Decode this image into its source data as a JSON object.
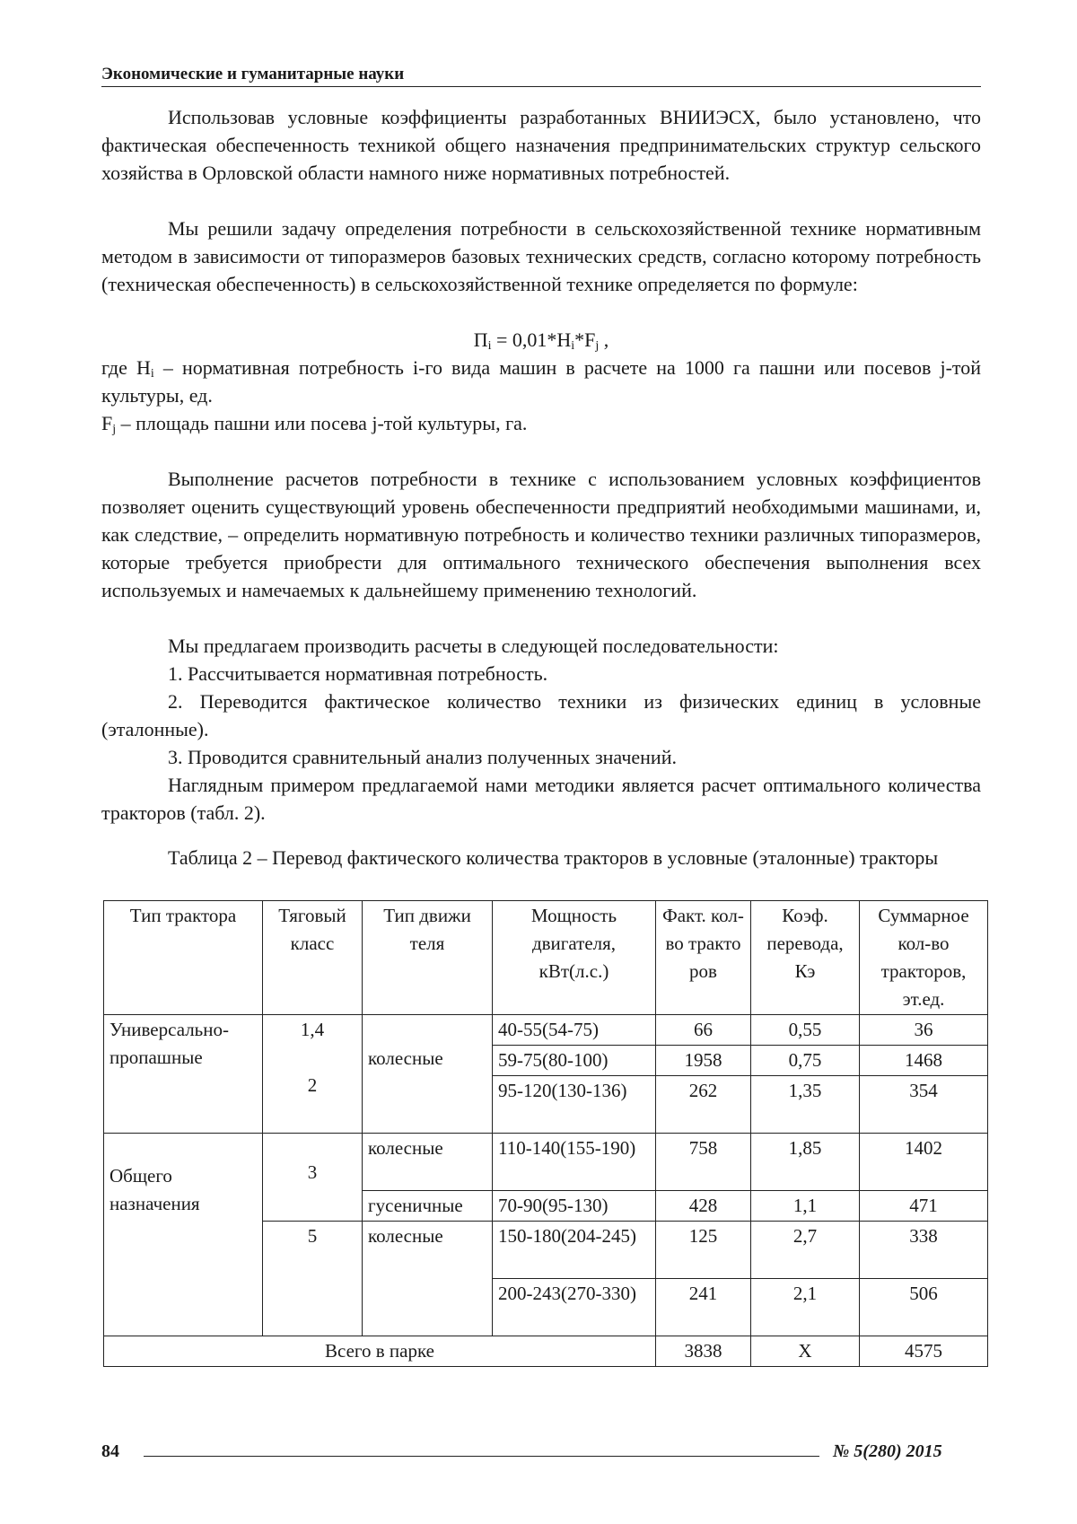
{
  "header": {
    "journal_section": "Экономические и гуманитарные науки"
  },
  "paragraphs": [
    "Использовав условные коэффициенты разработанных ВНИИЭСХ, было установлено, что фактическая обеспеченность техникой общего назначения предпринимательских структур сельского хозяйства в Орловской области намного ниже нормативных потребностей.",
    "Мы решили задачу определения потребности в сельскохозяйственной технике нормативным методом в зависимости от типоразмеров базовых технических средств, согласно которому потребность (техническая обеспеченность) в сельскохозяйственной технике определяется по формуле:"
  ],
  "formula": {
    "lhs": "П",
    "lhs_sub": "i",
    "eq": " = 0,01*Н",
    "h_sub": "i",
    "mid": "*F",
    "f_sub": "j",
    "end": " ,"
  },
  "where": {
    "h_sym": "где Н",
    "h_sub": "i",
    "h_text": " – нормативная потребность i-го вида машин в расчете на 1000 га пашни или посевов j-той культуры, ед.",
    "f_sym": "F",
    "f_sub": "j",
    "f_text": " – площадь пашни или посева j-той культуры, га."
  },
  "paragraphs2": [
    "Выполнение расчетов потребности в технике с использованием условных коэффициентов позволяет оценить существующий уровень обеспеченности предприятий необходимыми машинами, и, как следствие, – определить нормативную потребность и количество техники различных типоразмеров, которые требуется приобрести для оптимального технического обеспечения выполнения всех используемых и намечаемых к дальнейшему применению технологий.",
    "Мы предлагаем производить расчеты в следующей последовательности:",
    "1. Рассчитывается нормативная потребность.",
    "2. Переводится фактическое количество техники из физических единиц в условные (эталонные).",
    "3. Проводится сравнительный анализ полученных значений.",
    "Наглядным примером предлагаемой нами методики является  расчет оптимального количества тракторов (табл. 2)."
  ],
  "table": {
    "caption": "Таблица 2 – Перевод фактического количества тракторов в условные (эталонные) тракторы",
    "headers": [
      "Тип трактора",
      "Тяговый класс",
      "Тип движи теля",
      "Мощность двигателя, кВт(л.с.)",
      "Факт. кол-во тракто ров",
      "Коэф. перевода, Кэ",
      "Суммарное кол-во тракторов, эт.ед."
    ],
    "groups": {
      "g1": "Универсально-пропашные",
      "g2": "Общего назначения"
    },
    "classes": {
      "c14": "1,4",
      "c2": "2",
      "c3": "3",
      "c5": "5"
    },
    "engines": {
      "wheel": "колесные",
      "track": "гусеничные"
    },
    "rows": [
      {
        "power": "40-55(54-75)",
        "fact": "66",
        "coef": "0,55",
        "total": "36"
      },
      {
        "power": "59-75(80-100)",
        "fact": "1958",
        "coef": "0,75",
        "total": "1468"
      },
      {
        "power": "95-120(130-136)",
        "fact": "262",
        "coef": "1,35",
        "total": "354"
      },
      {
        "power": "110-140(155-190)",
        "fact": "758",
        "coef": "1,85",
        "total": "1402"
      },
      {
        "power": "70-90(95-130)",
        "fact": "428",
        "coef": "1,1",
        "total": "471"
      },
      {
        "power": "150-180(204-245)",
        "fact": "125",
        "coef": "2,7",
        "total": "338"
      },
      {
        "power": "200-243(270-330)",
        "fact": "241",
        "coef": "2,1",
        "total": "506"
      }
    ],
    "total_row": {
      "label": "Всего в парке",
      "fact": "3838",
      "coef": "Х",
      "total": "4575"
    }
  },
  "footer": {
    "page": "84",
    "issue": "№ 5(280) 2015"
  }
}
